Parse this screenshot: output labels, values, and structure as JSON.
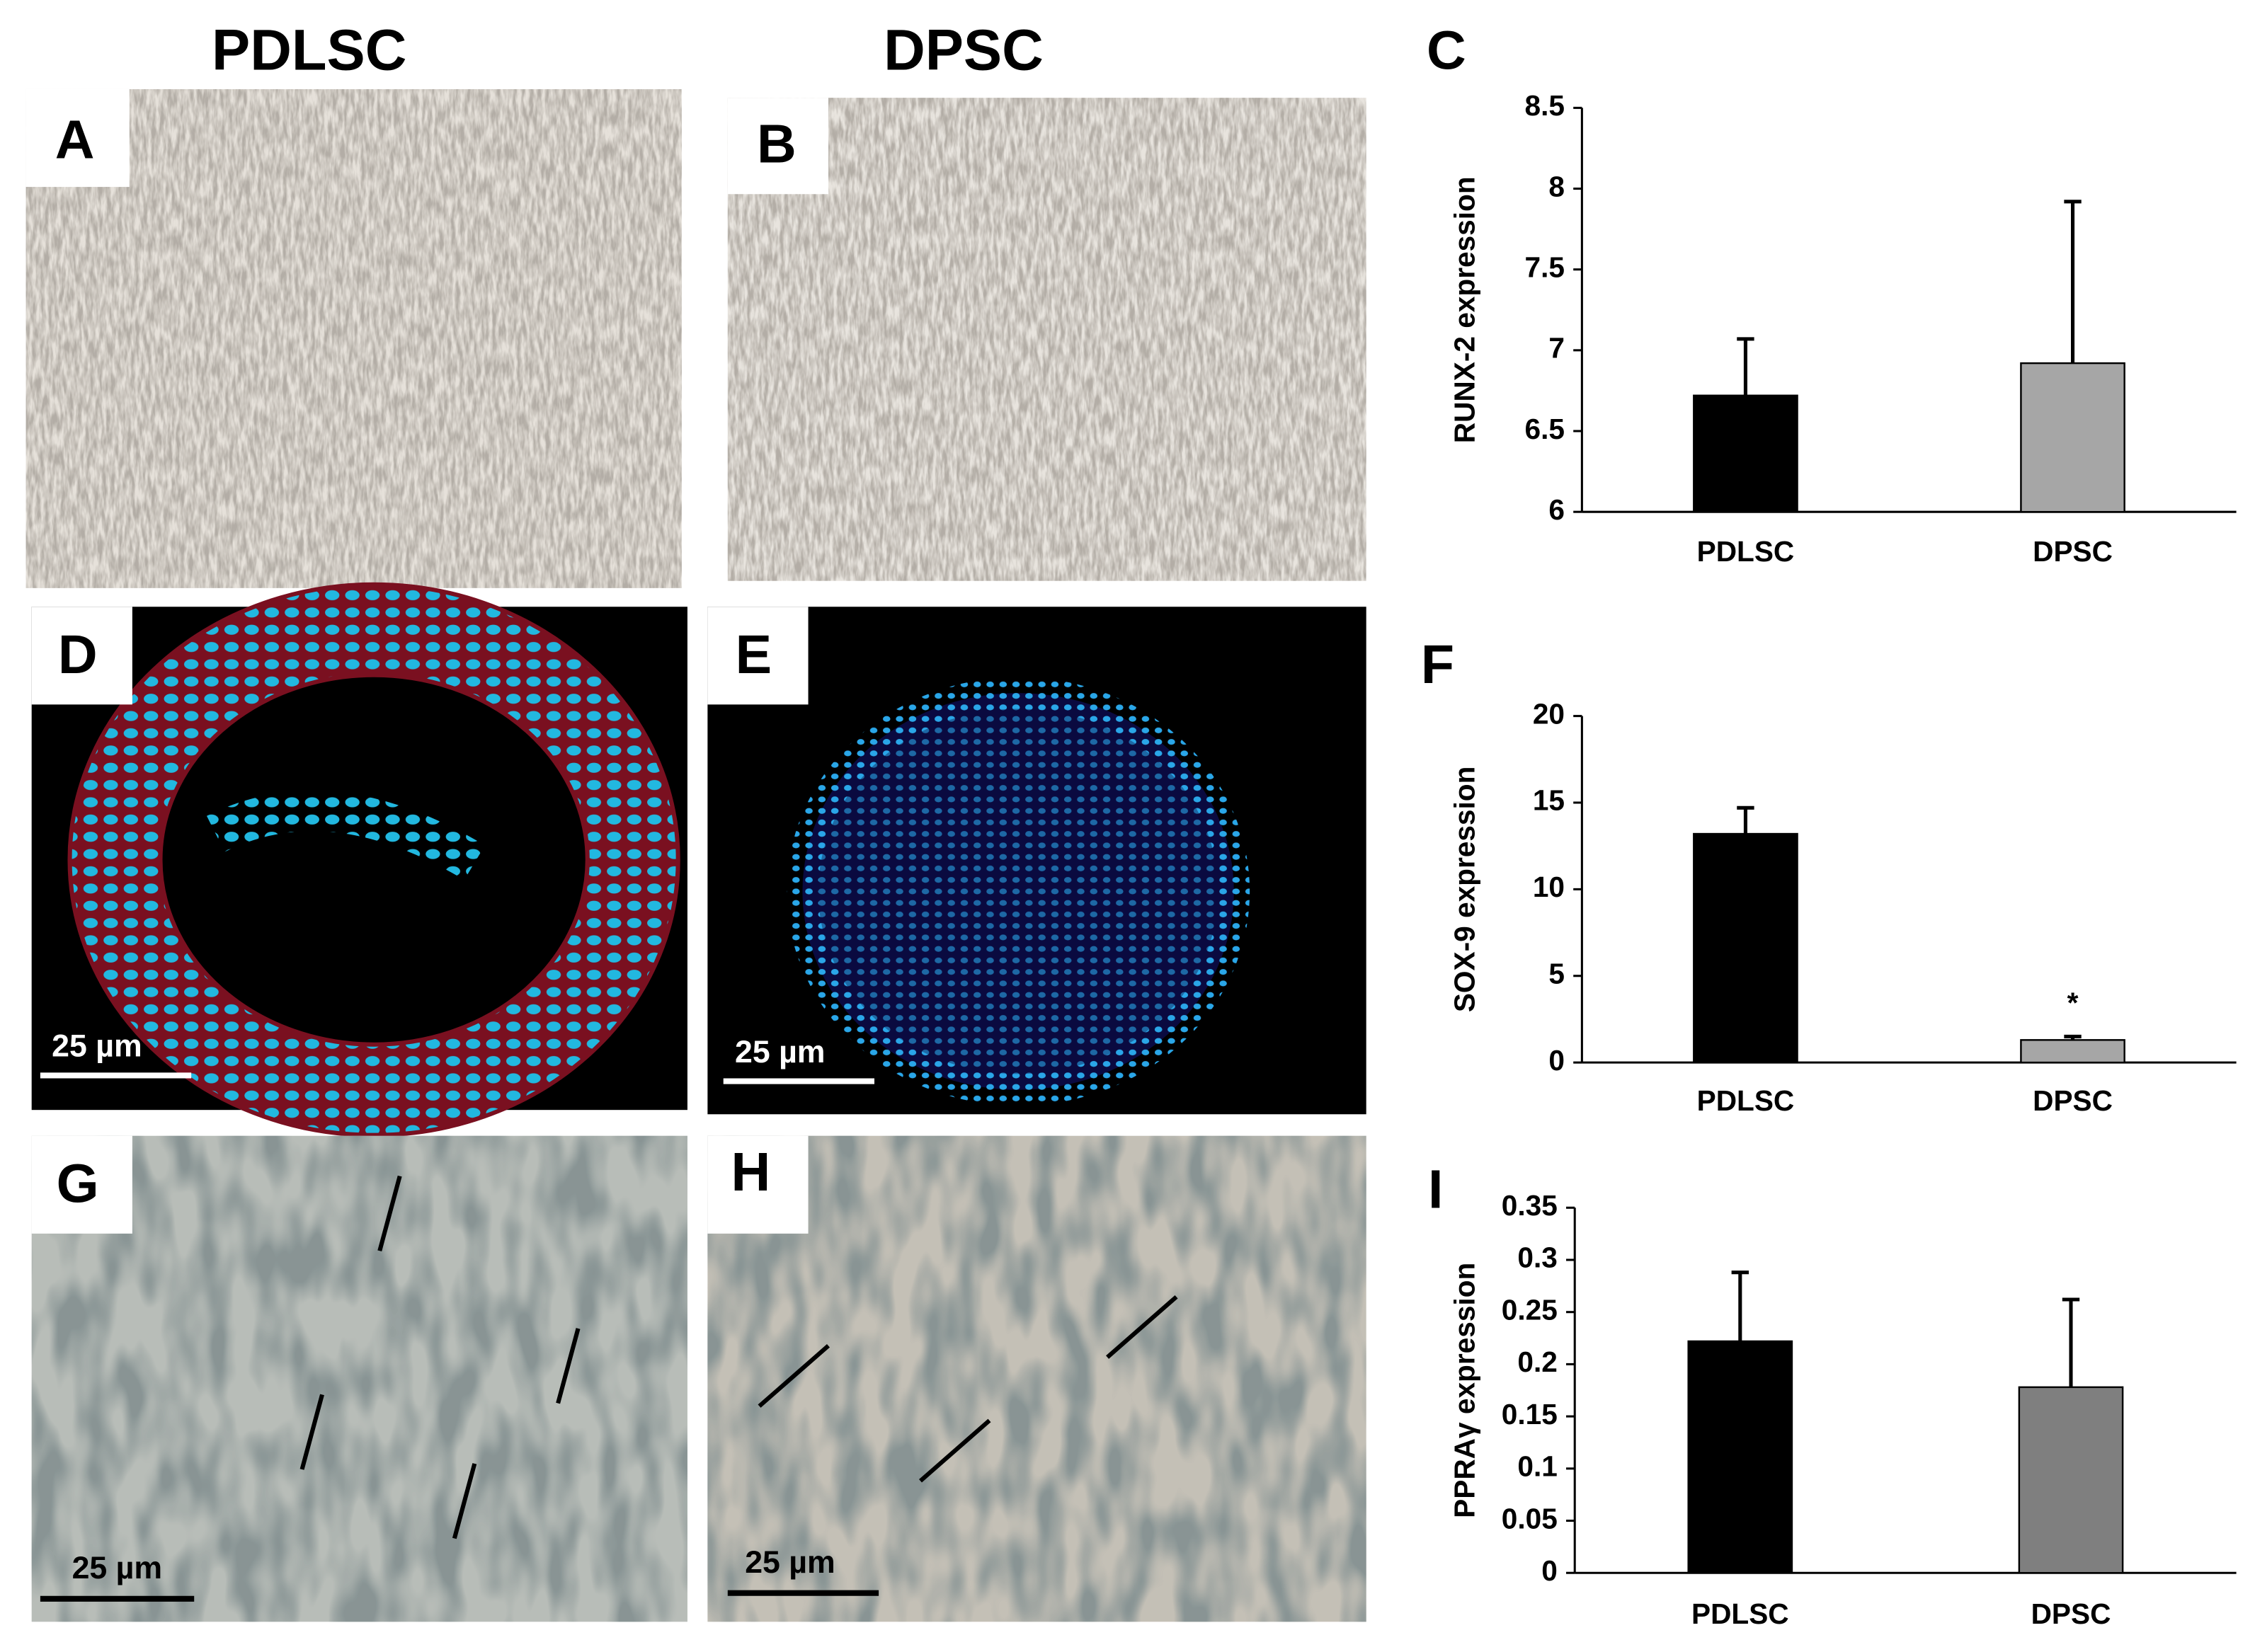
{
  "column_headers": [
    "PDLSC",
    "DPSC"
  ],
  "image_panels": [
    {
      "letter": "A"
    },
    {
      "letter": "B"
    },
    {
      "letter": "D",
      "scale_label": "25 µm"
    },
    {
      "letter": "E",
      "scale_label": "25 µm"
    },
    {
      "letter": "G",
      "scale_label": "25 µm"
    },
    {
      "letter": "H",
      "scale_label": "25 µm"
    }
  ],
  "chart_data": [
    {
      "type": "bar",
      "panel_label": "C",
      "y_label": "RUNX-2 expression",
      "categories": [
        "PDLSC",
        "DPSC"
      ],
      "values": [
        6.72,
        6.92
      ],
      "errors": [
        0.35,
        1.0
      ],
      "colors": [
        "#000000",
        "#a6a6a6"
      ],
      "ylim": [
        6,
        8.5
      ],
      "yticks": [
        6,
        6.5,
        7,
        7.5,
        8,
        8.5
      ]
    },
    {
      "type": "bar",
      "panel_label": "F",
      "y_label": "SOX-9 expression",
      "categories": [
        "PDLSC",
        "DPSC"
      ],
      "values": [
        13.2,
        1.3
      ],
      "errors": [
        1.5,
        0.2
      ],
      "colors": [
        "#000000",
        "#a6a6a6"
      ],
      "annotation": "*",
      "ylim": [
        0,
        20
      ],
      "yticks": [
        0,
        5,
        10,
        15,
        20
      ]
    },
    {
      "type": "bar",
      "panel_label": "I",
      "y_label": "PPRAγ expression",
      "categories": [
        "PDLSC",
        "DPSC"
      ],
      "values": [
        0.222,
        0.178
      ],
      "errors": [
        0.066,
        0.084
      ],
      "colors": [
        "#000000",
        "#7f7f7f"
      ],
      "ylim": [
        0,
        0.35
      ],
      "yticks": [
        0,
        0.05,
        0.1,
        0.15,
        0.2,
        0.25,
        0.3,
        0.35
      ]
    }
  ]
}
